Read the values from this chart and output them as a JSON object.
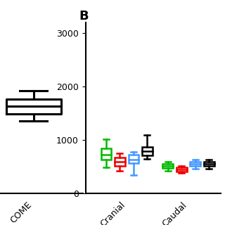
{
  "title_B": "B",
  "background_color": "#ffffff",
  "ylim": [
    0,
    3200
  ],
  "yticks": [
    0,
    1000,
    2000,
    3000
  ],
  "xlabel_B_ticks": [
    "Cranial",
    "Caudal"
  ],
  "panel_A_box": {
    "median": 1640,
    "q1": 1490,
    "q3": 1770,
    "whislo": 1360,
    "whishi": 1920
  },
  "panel_A_ylim": [
    0,
    3200
  ],
  "panel_A_xlabel": "COME",
  "cranial_boxes": [
    {
      "color": "#00bb00",
      "median": 720,
      "q1": 640,
      "q3": 840,
      "whislo": 490,
      "whishi": 1010
    },
    {
      "color": "#ee0000",
      "median": 600,
      "q1": 520,
      "q3": 680,
      "whislo": 430,
      "whishi": 750
    },
    {
      "color": "#4499ff",
      "median": 640,
      "q1": 570,
      "q3": 720,
      "whislo": 340,
      "whishi": 780
    },
    {
      "color": "#000000",
      "median": 790,
      "q1": 710,
      "q3": 870,
      "whislo": 650,
      "whishi": 1100
    }
  ],
  "caudal_boxes": [
    {
      "color": "#00bb00",
      "median": 510,
      "q1": 470,
      "q3": 550,
      "whislo": 430,
      "whishi": 590
    },
    {
      "color": "#ee0000",
      "median": 455,
      "q1": 415,
      "q3": 490,
      "whislo": 385,
      "whishi": 520
    },
    {
      "color": "#4499ff",
      "median": 555,
      "q1": 510,
      "q3": 595,
      "whislo": 460,
      "whishi": 635
    },
    {
      "color": "#000000",
      "median": 555,
      "q1": 510,
      "q3": 600,
      "whislo": 460,
      "whishi": 640
    }
  ]
}
